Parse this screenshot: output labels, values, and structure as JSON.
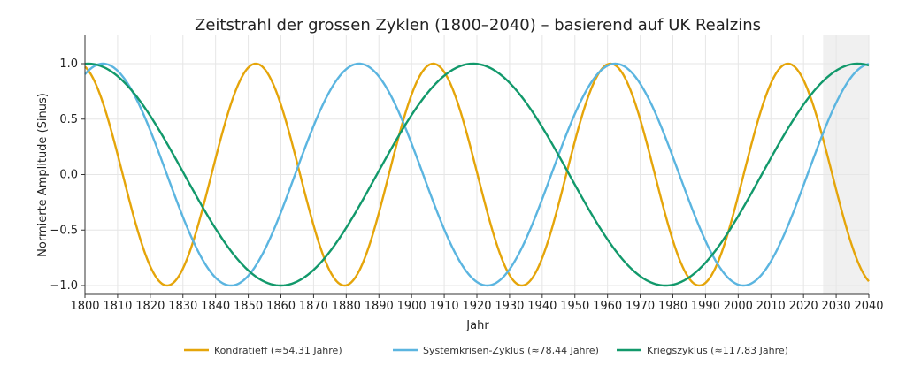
{
  "chart_data": {
    "type": "line",
    "title": "Zeitstrahl der grossen Zyklen (1800–2040) – basierend auf UK Realzins",
    "xlabel": "Jahr",
    "ylabel": "Normierte Amplitude (Sinus)",
    "xlim": [
      1800,
      2040
    ],
    "ylim": [
      -1.1,
      1.25
    ],
    "xticks": [
      "1800",
      "1810",
      "1820",
      "1830",
      "1840",
      "1850",
      "1860",
      "1870",
      "1880",
      "1890",
      "1900",
      "1910",
      "1920",
      "1930",
      "1940",
      "1950",
      "1960",
      "1970",
      "1980",
      "1990",
      "2000",
      "2010",
      "2020",
      "2030",
      "2040"
    ],
    "yticks": [
      "1.0",
      "0.5",
      "0.0",
      "−0.5",
      "−1.0"
    ],
    "ytick_values": [
      1.0,
      0.5,
      0.0,
      -0.5,
      -1.0
    ],
    "shaded_region": [
      2026,
      2040
    ],
    "grid": true,
    "legend_position": "bottom",
    "series": [
      {
        "name": "Kondratieff (≈54,31 Jahre)",
        "period": 54.31,
        "peak_year": 1798.0,
        "color": "#E5A50A"
      },
      {
        "name": "Systemkrisen-Zyklus (≈78,44 Jahre)",
        "period": 78.44,
        "peak_year": 1805.5,
        "color": "#5BB5E0"
      },
      {
        "name": "Kriegszyklus (≈117,83 Jahre)",
        "period": 117.83,
        "peak_year": 1801.0,
        "color": "#12996B"
      }
    ]
  }
}
